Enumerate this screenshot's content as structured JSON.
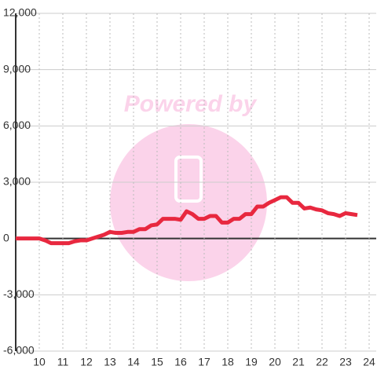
{
  "chart_data": {
    "type": "line",
    "watermark": "Powered by",
    "x": [
      9,
      9.25,
      9.5,
      9.75,
      10,
      10.25,
      10.5,
      10.75,
      11,
      11.25,
      11.5,
      11.75,
      12,
      12.25,
      12.5,
      12.75,
      13,
      13.25,
      13.5,
      13.75,
      14,
      14.25,
      14.5,
      14.75,
      15,
      15.25,
      15.5,
      15.75,
      16,
      16.25,
      16.5,
      16.75,
      17,
      17.25,
      17.5,
      17.75,
      18,
      18.25,
      18.5,
      18.75,
      19,
      19.25,
      19.5,
      19.75,
      20,
      20.25,
      20.5,
      20.75,
      21,
      21.25,
      21.5,
      21.75,
      22,
      22.25,
      22.5,
      22.75,
      23,
      23.25,
      23.5
    ],
    "series": [
      {
        "color": "#e8283f",
        "values": [
          0,
          0,
          0,
          0,
          0,
          -100,
          -250,
          -250,
          -250,
          -250,
          -150,
          -100,
          -100,
          0,
          100,
          200,
          350,
          300,
          300,
          350,
          350,
          500,
          500,
          700,
          750,
          1050,
          1050,
          1050,
          1000,
          1450,
          1300,
          1050,
          1050,
          1200,
          1200,
          850,
          850,
          1050,
          1050,
          1300,
          1300,
          1700,
          1700,
          1900,
          2050,
          2200,
          2200,
          1900,
          1900,
          1600,
          1650,
          1550,
          1500,
          1350,
          1300,
          1200,
          1350,
          1300,
          1250
        ]
      }
    ],
    "xlim": [
      9,
      24.3
    ],
    "xticks": [
      10,
      11,
      12,
      13,
      14,
      15,
      16,
      17,
      18,
      19,
      20,
      21,
      22,
      23,
      24
    ],
    "ylim": [
      -6000,
      12000
    ],
    "yticks": [
      {
        "value": -6000,
        "label": "-6,000"
      },
      {
        "value": -3000,
        "label": "-3,000"
      },
      0,
      {
        "value": 3000,
        "label": "3,000"
      },
      {
        "value": 6000,
        "label": "6,000"
      },
      {
        "value": 9000,
        "label": "9,000"
      },
      {
        "value": 12000,
        "label": "12,000"
      }
    ],
    "grid": true
  }
}
